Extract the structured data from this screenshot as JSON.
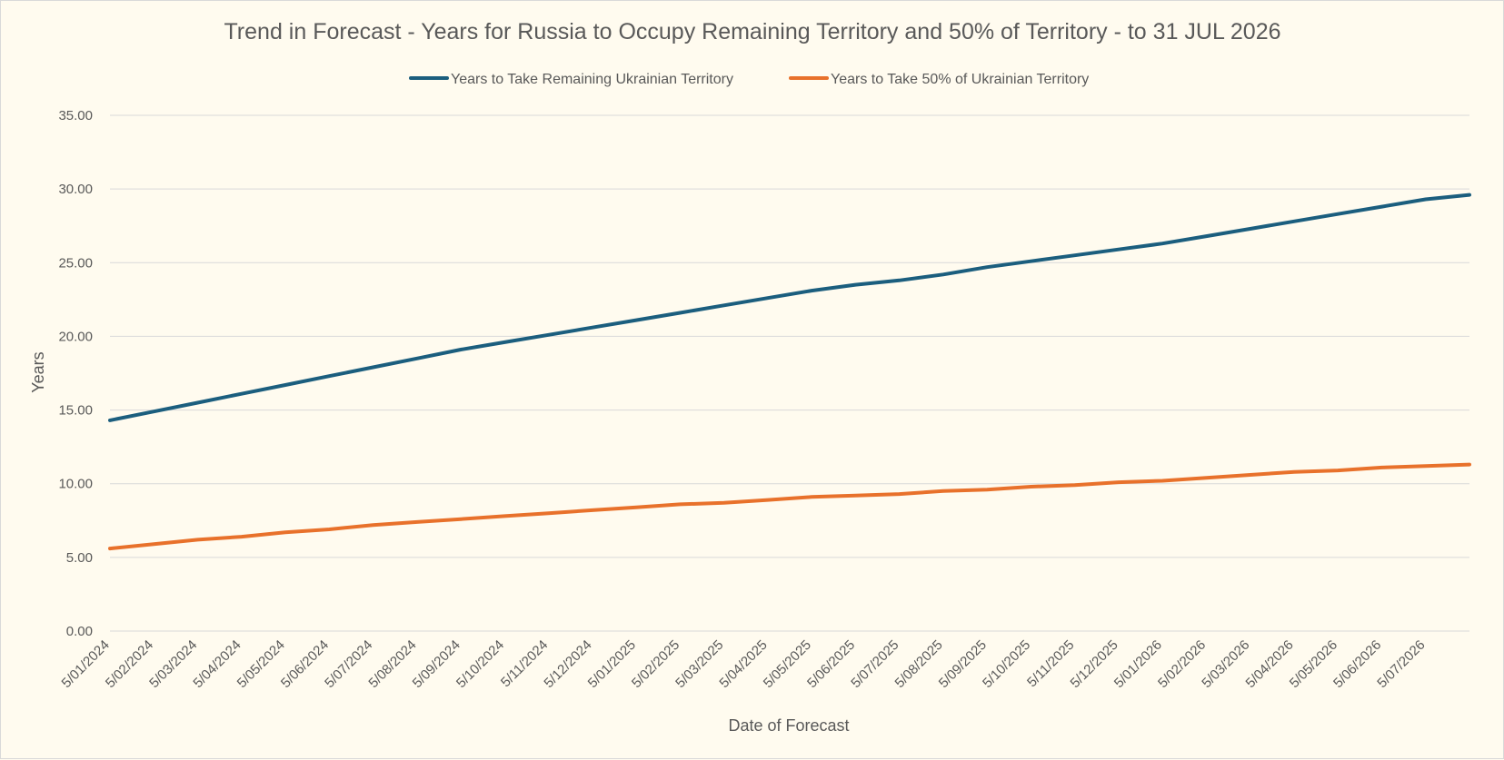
{
  "chart_data": {
    "type": "line",
    "title": "Trend in Forecast - Years for Russia to Occupy Remaining Territory and 50% of Territory - to 31 JUL 2026",
    "xlabel": "Date of Forecast",
    "ylabel": "Years",
    "ylim": [
      0,
      35
    ],
    "yticks": [
      "0.00",
      "5.00",
      "10.00",
      "15.00",
      "20.00",
      "25.00",
      "30.00",
      "35.00"
    ],
    "x_tick_labels": [
      "5/01/2024",
      "5/02/2024",
      "5/03/2024",
      "5/04/2024",
      "5/05/2024",
      "5/06/2024",
      "5/07/2024",
      "5/08/2024",
      "5/09/2024",
      "5/10/2024",
      "5/11/2024",
      "5/12/2024",
      "5/01/2025",
      "5/02/2025",
      "5/03/2025",
      "5/04/2025",
      "5/05/2025",
      "5/06/2025",
      "5/07/2025",
      "5/08/2025",
      "5/09/2025",
      "5/10/2025",
      "5/11/2025",
      "5/12/2025",
      "5/01/2026",
      "5/02/2026",
      "5/03/2026",
      "5/04/2026",
      "5/05/2026",
      "5/06/2026",
      "5/07/2026"
    ],
    "x_end_label": "31/07/2026",
    "grid": true,
    "legend_position": "top",
    "colors": {
      "background": "#fffbef",
      "grid": "#d9d9d9",
      "text": "#595959"
    },
    "x": [
      "5/01/2024",
      "5/02/2024",
      "5/03/2024",
      "5/04/2024",
      "5/05/2024",
      "5/06/2024",
      "5/07/2024",
      "5/08/2024",
      "5/09/2024",
      "5/10/2024",
      "5/11/2024",
      "5/12/2024",
      "5/01/2025",
      "5/02/2025",
      "5/03/2025",
      "5/04/2025",
      "5/05/2025",
      "5/06/2025",
      "5/07/2025",
      "5/08/2025",
      "5/09/2025",
      "5/10/2025",
      "5/11/2025",
      "5/12/2025",
      "5/01/2026",
      "5/02/2026",
      "5/03/2026",
      "5/04/2026",
      "5/05/2026",
      "5/06/2026",
      "5/07/2026",
      "31/07/2026"
    ],
    "series": [
      {
        "name": "Years to Take Remaining Ukrainian Territory",
        "color": "#1b5e7e",
        "values": [
          14.3,
          14.9,
          15.5,
          16.1,
          16.7,
          17.3,
          17.9,
          18.5,
          19.1,
          19.6,
          20.1,
          20.6,
          21.1,
          21.6,
          22.1,
          22.6,
          23.1,
          23.5,
          23.8,
          24.2,
          24.7,
          25.1,
          25.5,
          25.9,
          26.3,
          26.8,
          27.3,
          27.8,
          28.3,
          28.8,
          29.3,
          29.6
        ]
      },
      {
        "name": "Years to Take  50% of Ukrainian Territory",
        "color": "#e8712b",
        "values": [
          5.6,
          5.9,
          6.2,
          6.4,
          6.7,
          6.9,
          7.2,
          7.4,
          7.6,
          7.8,
          8.0,
          8.2,
          8.4,
          8.6,
          8.7,
          8.9,
          9.1,
          9.2,
          9.3,
          9.5,
          9.6,
          9.8,
          9.9,
          10.1,
          10.2,
          10.4,
          10.6,
          10.8,
          10.9,
          11.1,
          11.2,
          11.3
        ]
      }
    ]
  }
}
